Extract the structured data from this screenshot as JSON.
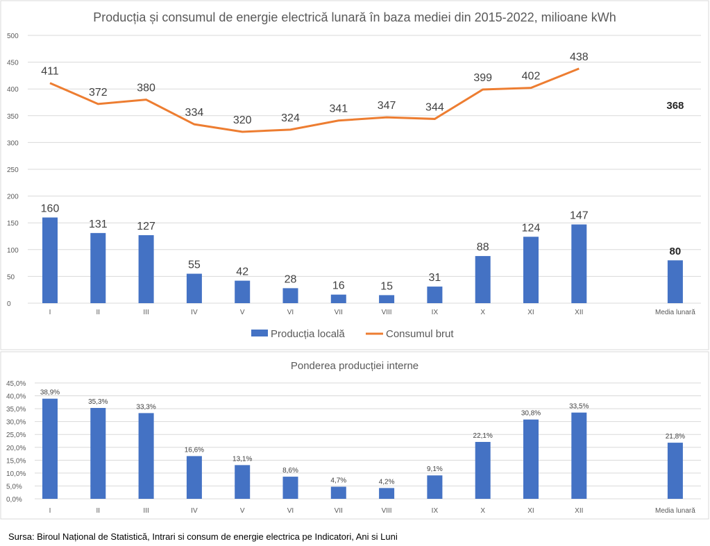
{
  "chart_data": [
    {
      "type": "bar+line",
      "title": "Producția și consumul de energie electrică lunară în baza mediei din 2015-2022, milioane kWh",
      "categories": [
        "I",
        "II",
        "III",
        "IV",
        "V",
        "VI",
        "VII",
        "VIII",
        "IX",
        "X",
        "XI",
        "XII",
        "Media lunară"
      ],
      "ylim": [
        0,
        500
      ],
      "yticks": [
        "0",
        "50",
        "100",
        "150",
        "200",
        "250",
        "300",
        "350",
        "400",
        "450",
        "500"
      ],
      "grid": true,
      "legend": "bottom",
      "series": [
        {
          "name": "Producția locală",
          "type": "bar",
          "color": "#4472C4",
          "values": [
            160,
            131,
            127,
            55,
            42,
            28,
            16,
            15,
            31,
            88,
            124,
            147,
            80
          ]
        },
        {
          "name": "Consumul brut",
          "type": "line",
          "color": "#ED7D31",
          "values": [
            411,
            372,
            380,
            334,
            320,
            324,
            341,
            347,
            344,
            399,
            402,
            438,
            368
          ]
        }
      ]
    },
    {
      "type": "bar",
      "title": "Ponderea producției interne",
      "categories": [
        "I",
        "II",
        "III",
        "IV",
        "V",
        "VI",
        "VII",
        "VIII",
        "IX",
        "X",
        "XI",
        "XII",
        "Media lunară"
      ],
      "ylim": [
        0,
        45
      ],
      "yticks": [
        "0,0%",
        "5,0%",
        "10,0%",
        "15,0%",
        "20,0%",
        "25,0%",
        "30,0%",
        "35,0%",
        "40,0%",
        "45,0%"
      ],
      "grid": true,
      "values": [
        38.9,
        35.3,
        33.3,
        16.6,
        13.1,
        8.6,
        4.7,
        4.2,
        9.1,
        22.1,
        30.8,
        33.5,
        21.8
      ],
      "labels": [
        "38,9%",
        "35,3%",
        "33,3%",
        "16,6%",
        "13,1%",
        "8,6%",
        "4,7%",
        "4,2%",
        "9,1%",
        "22,1%",
        "30,8%",
        "33,5%",
        "21,8%"
      ],
      "color": "#4472C4"
    }
  ],
  "source": "Sursa: Biroul Național de Statistică, Intrari si consum de energie electrica pe Indicatori, Ani si Luni"
}
